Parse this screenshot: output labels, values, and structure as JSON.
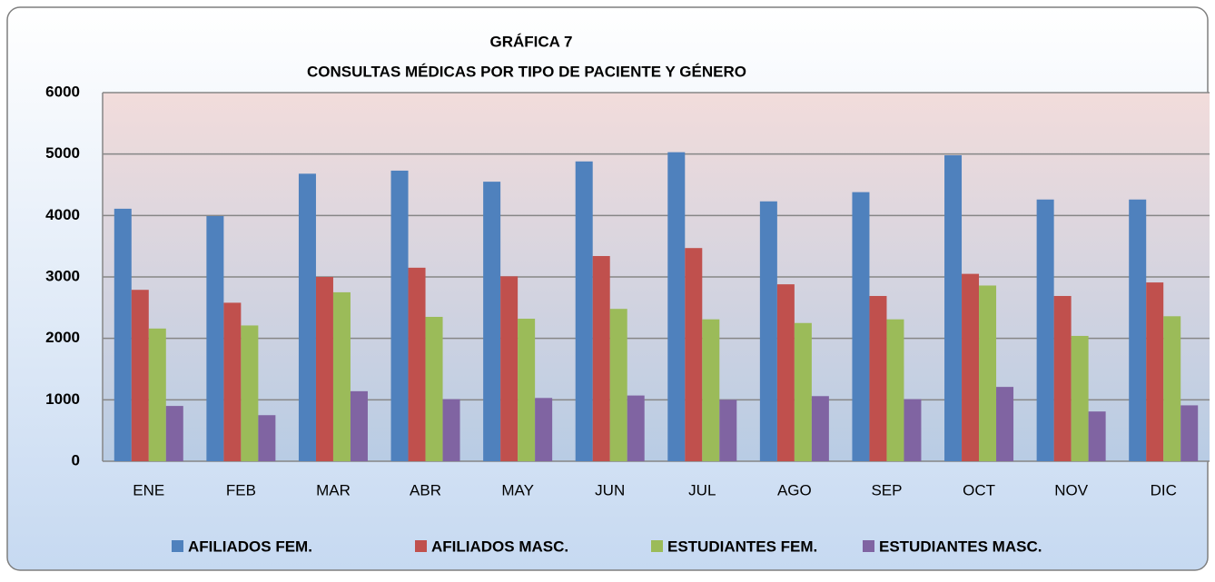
{
  "chart_data": {
    "type": "bar",
    "title": "GRÁFICA 7",
    "subtitle": "CONSULTAS MÉDICAS POR TIPO DE PACIENTE Y GÉNERO",
    "categories": [
      "ENE",
      "FEB",
      "MAR",
      "ABR",
      "MAY",
      "JUN",
      "JUL",
      "AGO",
      "SEP",
      "OCT",
      "NOV",
      "DIC"
    ],
    "series": [
      {
        "name": "AFILIADOS FEM.",
        "color": "#4f81bd",
        "values": [
          4110,
          3990,
          4680,
          4730,
          4550,
          4880,
          5030,
          4230,
          4380,
          4980,
          4260,
          4260
        ]
      },
      {
        "name": "AFILIADOS MASC.",
        "color": "#c0504d",
        "values": [
          2790,
          2580,
          3000,
          3150,
          3010,
          3340,
          3470,
          2880,
          2690,
          3050,
          2690,
          2910
        ]
      },
      {
        "name": "ESTUDIANTES FEM.",
        "color": "#9bbb59",
        "values": [
          2160,
          2210,
          2750,
          2350,
          2320,
          2480,
          2310,
          2250,
          2310,
          2860,
          2040,
          2360
        ]
      },
      {
        "name": "ESTUDIANTES MASC.",
        "color": "#8064a2",
        "values": [
          900,
          750,
          1140,
          1010,
          1030,
          1070,
          1000,
          1060,
          1010,
          1210,
          810,
          910
        ]
      }
    ],
    "ylim": [
      0,
      6000
    ],
    "yticks": [
      0,
      1000,
      2000,
      3000,
      4000,
      5000,
      6000
    ],
    "grid": true,
    "legend": "bottom"
  }
}
